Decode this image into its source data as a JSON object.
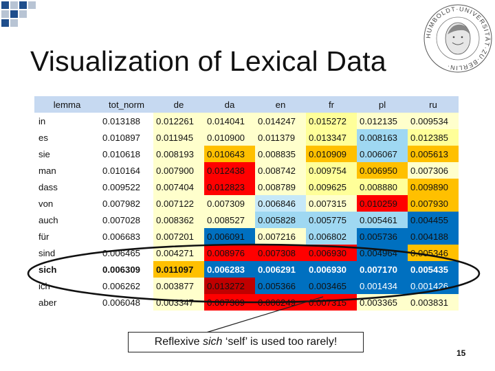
{
  "slide": {
    "title": "Visualization of Lexical Data",
    "page_number": "15"
  },
  "logo": {
    "name": "Humboldt-Universität zu Berlin seal",
    "inscription": "HUMBOLDT-UNIVERSITÄT ZU BERLIN"
  },
  "table": {
    "headers": [
      "lemma",
      "tot_norm",
      "de",
      "da",
      "en",
      "fr",
      "pl",
      "ru"
    ],
    "rows": [
      {
        "lemma": "in",
        "tot": "0.013188",
        "vals": [
          "0.012261",
          "0.014041",
          "0.014247",
          "0.015272",
          "0.012135",
          "0.009534"
        ],
        "bg": [
          "#ffffcc",
          "#ffffcc",
          "#ffffcc",
          "#ffff99",
          "#ffffcc",
          "#ffffcc"
        ],
        "fg": [
          "#111111",
          "#111111",
          "#111111",
          "#111111",
          "#111111",
          "#111111"
        ]
      },
      {
        "lemma": "es",
        "tot": "0.010897",
        "vals": [
          "0.011945",
          "0.010900",
          "0.011379",
          "0.013347",
          "0.008163",
          "0.012385"
        ],
        "bg": [
          "#ffffcc",
          "#ffffcc",
          "#ffffcc",
          "#ffff99",
          "#9fd8f2",
          "#ffff99"
        ],
        "fg": [
          "#111111",
          "#111111",
          "#111111",
          "#111111",
          "#111111",
          "#111111"
        ]
      },
      {
        "lemma": "sie",
        "tot": "0.010618",
        "vals": [
          "0.008193",
          "0.010643",
          "0.008835",
          "0.010909",
          "0.006067",
          "0.005613"
        ],
        "bg": [
          "#ffffcc",
          "#ffc000",
          "#ffffcc",
          "#ffc000",
          "#9fd8f2",
          "#ffc000"
        ],
        "fg": [
          "#111111",
          "#111111",
          "#111111",
          "#111111",
          "#111111",
          "#111111"
        ]
      },
      {
        "lemma": "man",
        "tot": "0.010164",
        "vals": [
          "0.007900",
          "0.012438",
          "0.008742",
          "0.009754",
          "0.006950",
          "0.007306"
        ],
        "bg": [
          "#ffffcc",
          "#ff0000",
          "#ffffcc",
          "#ffff99",
          "#ffc000",
          "#ffffcc"
        ],
        "fg": [
          "#111111",
          "#111111",
          "#111111",
          "#111111",
          "#111111",
          "#111111"
        ]
      },
      {
        "lemma": "dass",
        "tot": "0.009522",
        "vals": [
          "0.007404",
          "0.012823",
          "0.008789",
          "0.009625",
          "0.008880",
          "0.009890"
        ],
        "bg": [
          "#ffffcc",
          "#ff0000",
          "#ffffcc",
          "#ffff99",
          "#ffff99",
          "#ffc000"
        ],
        "fg": [
          "#111111",
          "#111111",
          "#111111",
          "#111111",
          "#111111",
          "#111111"
        ]
      },
      {
        "lemma": "von",
        "tot": "0.007982",
        "vals": [
          "0.007122",
          "0.007309",
          "0.006846",
          "0.007315",
          "0.010259",
          "0.007930"
        ],
        "bg": [
          "#ffffcc",
          "#ffffcc",
          "#c6e8f8",
          "#ffffcc",
          "#ff0000",
          "#ffc000"
        ],
        "fg": [
          "#111111",
          "#111111",
          "#111111",
          "#111111",
          "#111111",
          "#111111"
        ]
      },
      {
        "lemma": "auch",
        "tot": "0.007028",
        "vals": [
          "0.008362",
          "0.008527",
          "0.005828",
          "0.005775",
          "0.005461",
          "0.004455"
        ],
        "bg": [
          "#ffffcc",
          "#ffffcc",
          "#9fd8f2",
          "#9fd8f2",
          "#9fd8f2",
          "#0070c0"
        ],
        "fg": [
          "#111111",
          "#111111",
          "#111111",
          "#111111",
          "#111111",
          "#111111"
        ]
      },
      {
        "lemma": "für",
        "tot": "0.006683",
        "vals": [
          "0.007201",
          "0.006091",
          "0.007216",
          "0.006802",
          "0.005736",
          "0.004188"
        ],
        "bg": [
          "#ffffcc",
          "#0070c0",
          "#ffffcc",
          "#9fd8f2",
          "#0070c0",
          "#0070c0"
        ],
        "fg": [
          "#111111",
          "#111111",
          "#111111",
          "#111111",
          "#111111",
          "#111111"
        ]
      },
      {
        "lemma": "sind",
        "tot": "0.006465",
        "vals": [
          "0.004271",
          "0.008976",
          "0.007308",
          "0.006930",
          "0.004964",
          "0.005346"
        ],
        "bg": [
          "#ffffcc",
          "#ff0000",
          "#ff0000",
          "#ff0000",
          "#0070c0",
          "#ffc000"
        ],
        "fg": [
          "#111111",
          "#111111",
          "#111111",
          "#111111",
          "#111111",
          "#111111"
        ]
      },
      {
        "lemma": "sich",
        "tot": "0.006309",
        "vals": [
          "0.011097",
          "0.006283",
          "0.006291",
          "0.006930",
          "0.007170",
          "0.005435"
        ],
        "bg": [
          "#ffc000",
          "#0070c0",
          "#0070c0",
          "#0070c0",
          "#0070c0",
          "#0070c0"
        ],
        "fg": [
          "#111111",
          "#ffffff",
          "#ffffff",
          "#ffffff",
          "#ffffff",
          "#ffffff"
        ],
        "bold": true
      },
      {
        "lemma": "ich",
        "tot": "0.006262",
        "vals": [
          "0.003877",
          "0.013272",
          "0.005366",
          "0.003465",
          "0.001434",
          "0.001426"
        ],
        "bg": [
          "#ffffcc",
          "#c00000",
          "#0070c0",
          "#0070c0",
          "#0070c0",
          "#0070c0"
        ],
        "fg": [
          "#111111",
          "#111111",
          "#111111",
          "#111111",
          "#ffffff",
          "#ffffff"
        ]
      },
      {
        "lemma": "aber",
        "tot": "0.006048",
        "vals": [
          "0.003347",
          "0.007309",
          "0.006249",
          "0.007315",
          "0.003365",
          "0.003831"
        ],
        "bg": [
          "#ffffcc",
          "#ff0000",
          "#ff0000",
          "#ff0000",
          "#ffffcc",
          "#ffffcc"
        ],
        "fg": [
          "#111111",
          "#111111",
          "#111111",
          "#111111",
          "#111111",
          "#111111"
        ]
      }
    ]
  },
  "callout": {
    "prefix": "Reflexive ",
    "emphasis": "sich",
    "suffix": " ‘self’ is used too rarely!"
  },
  "colors": {
    "header_bg": "#c6d9f1",
    "pale_yellow": "#ffffcc",
    "yellow": "#ffff99",
    "orange": "#ffc000",
    "red": "#ff0000",
    "dark_red": "#c00000",
    "light_blue": "#9fd8f2",
    "blue": "#0070c0",
    "deco_blue": "#1f4e8c",
    "deco_gray": "#b8c4d4"
  }
}
